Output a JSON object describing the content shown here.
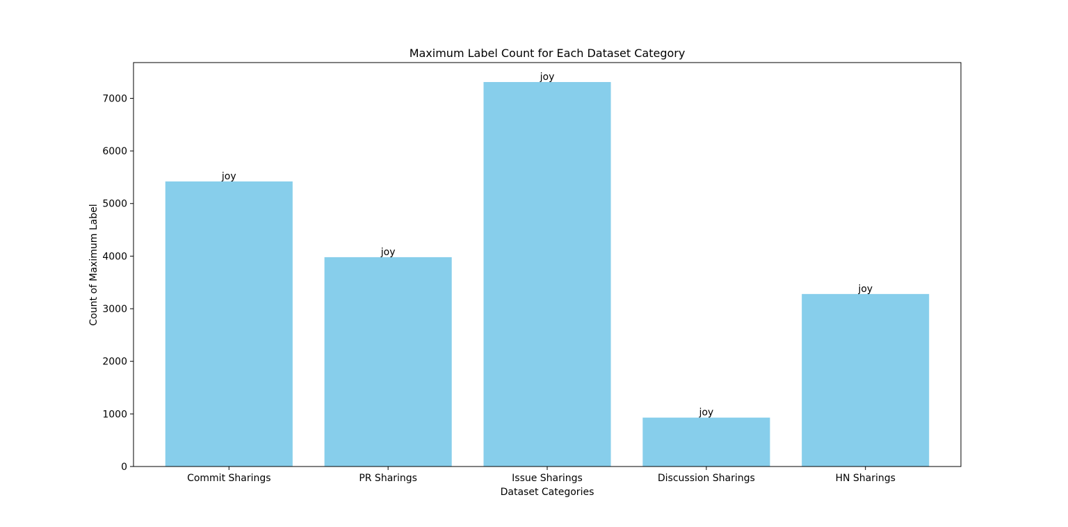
{
  "chart_data": {
    "type": "bar",
    "title": "Maximum Label Count for Each Dataset Category",
    "xlabel": "Dataset Categories",
    "ylabel": "Count of Maximum Label",
    "categories": [
      "Commit Sharings",
      "PR Sharings",
      "Issue Sharings",
      "Discussion Sharings",
      "HN Sharings"
    ],
    "values": [
      5420,
      3980,
      7310,
      930,
      3280
    ],
    "bar_labels": [
      "joy",
      "joy",
      "joy",
      "joy",
      "joy"
    ],
    "ylim": [
      0,
      7680
    ],
    "yticks": [
      0,
      1000,
      2000,
      3000,
      4000,
      5000,
      6000,
      7000
    ],
    "grid": false,
    "legend": "none",
    "bar_color": "#87CEEB"
  }
}
